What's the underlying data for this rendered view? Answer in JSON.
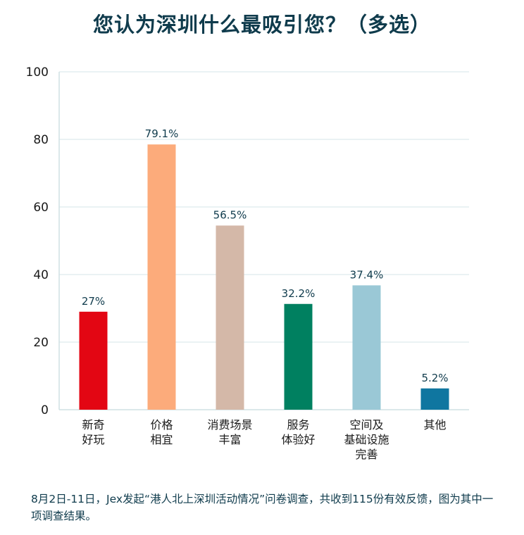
{
  "chart_data": {
    "type": "bar",
    "title": "您认为深圳什么最吸引您？（多选）",
    "categories": [
      [
        "新奇",
        "好玩"
      ],
      [
        "价格",
        "相宜"
      ],
      [
        "消费场景",
        "丰富"
      ],
      [
        "服务",
        "体验好"
      ],
      [
        "空间及",
        "基础设施",
        "完善"
      ],
      [
        "其他"
      ]
    ],
    "values": [
      27,
      79.1,
      56.5,
      32.2,
      37.4,
      5.2
    ],
    "display_values": [
      29,
      78.5,
      54.5,
      31.3,
      36.8,
      6.3
    ],
    "value_labels": [
      "27%",
      "79.1%",
      "56.5%",
      "32.2%",
      "37.4%",
      "5.2%"
    ],
    "colors": [
      "#e30613",
      "#fcab7b",
      "#d4b8a8",
      "#008060",
      "#9ac8d6",
      "#0f76a0"
    ],
    "y_ticks": [
      "0",
      "20",
      "40",
      "60",
      "80",
      "100"
    ],
    "ylim": [
      0,
      100
    ],
    "grid": true,
    "xlabel": "",
    "ylabel": ""
  },
  "footnote": "8月2日-11日，Jex发起“港人北上深圳活动情况”问卷调查，共收到115份有效反馈，图为其中一项调查结果。"
}
